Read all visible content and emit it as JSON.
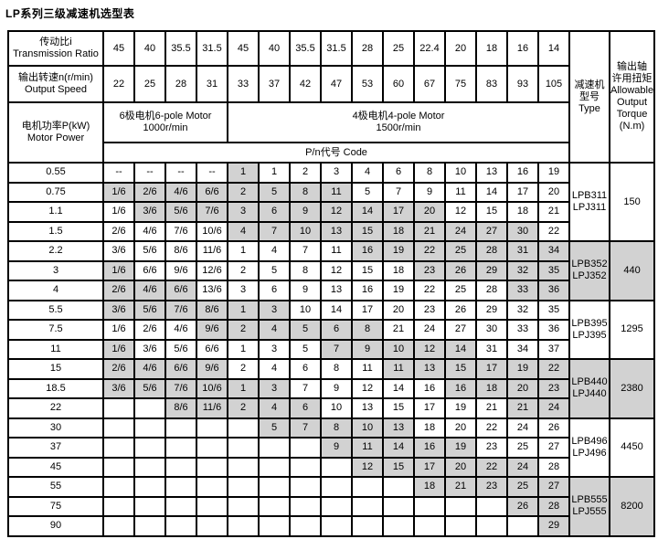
{
  "title": "LP系列三级减速机选型表",
  "colors": {
    "shaded_cell": "#d2d2d2",
    "border": "#000000",
    "background": "#ffffff"
  },
  "header": {
    "ratio_zh": "传动比i",
    "ratio_en": "Transmission Ratio",
    "ratios": [
      "45",
      "40",
      "35.5",
      "31.5",
      "45",
      "40",
      "35.5",
      "31.5",
      "28",
      "25",
      "22.4",
      "20",
      "18",
      "16",
      "14"
    ],
    "speed_zh": "输出转速n(r/min)",
    "speed_en": "Output Speed",
    "speeds": [
      "22",
      "25",
      "28",
      "31",
      "33",
      "37",
      "42",
      "47",
      "53",
      "60",
      "67",
      "75",
      "83",
      "93",
      "105"
    ],
    "power_zh": "电机功率P(kW)",
    "power_en": "Motor Power",
    "motor6_line1": "6极电机6-pole Motor",
    "motor6_line2": "1000r/min",
    "motor4_line1": "4极电机4-pole Motor",
    "motor4_line2": "1500r/min",
    "pn_label": "P/n代号 Code",
    "type_lines": [
      "减速机",
      "型号",
      "Type"
    ],
    "torque_lines": [
      "输出轴",
      "许用扭矩",
      "Allowable",
      "Output",
      "Torque",
      "(N.m)"
    ]
  },
  "groups": [
    {
      "type": [
        "LPB311",
        "LPJ311"
      ],
      "torque": "150",
      "shaded": false,
      "rows": [
        {
          "power": "0.55",
          "cells": [
            "--",
            "--",
            "--",
            "--",
            "1",
            "1",
            "2",
            "3",
            "4",
            "6",
            "8",
            "10",
            "13",
            "16",
            "19"
          ],
          "gray": [
            0,
            0,
            0,
            0,
            1,
            0,
            0,
            0,
            0,
            0,
            0,
            0,
            0,
            0,
            0
          ]
        },
        {
          "power": "0.75",
          "cells": [
            "1/6",
            "2/6",
            "4/6",
            "6/6",
            "2",
            "5",
            "8",
            "11",
            "5",
            "7",
            "9",
            "11",
            "14",
            "17",
            "20"
          ],
          "gray": [
            1,
            1,
            1,
            1,
            1,
            1,
            1,
            1,
            0,
            0,
            0,
            0,
            0,
            0,
            0
          ]
        },
        {
          "power": "1.1",
          "cells": [
            "1/6",
            "3/6",
            "5/6",
            "7/6",
            "3",
            "6",
            "9",
            "12",
            "14",
            "17",
            "20",
            "12",
            "15",
            "18",
            "21"
          ],
          "gray": [
            0,
            1,
            1,
            1,
            1,
            1,
            1,
            1,
            1,
            1,
            1,
            0,
            0,
            0,
            0
          ]
        },
        {
          "power": "1.5",
          "cells": [
            "2/6",
            "4/6",
            "7/6",
            "10/6",
            "4",
            "7",
            "10",
            "13",
            "15",
            "18",
            "21",
            "24",
            "27",
            "30",
            "22"
          ],
          "gray": [
            0,
            0,
            0,
            0,
            1,
            1,
            1,
            1,
            1,
            1,
            1,
            1,
            1,
            1,
            0
          ]
        }
      ]
    },
    {
      "type": [
        "LPB352",
        "LPJ352"
      ],
      "torque": "440",
      "shaded": true,
      "rows": [
        {
          "power": "2.2",
          "cells": [
            "3/6",
            "5/6",
            "8/6",
            "11/6",
            "1",
            "4",
            "7",
            "11",
            "16",
            "19",
            "22",
            "25",
            "28",
            "31",
            "34"
          ],
          "gray": [
            0,
            0,
            0,
            0,
            0,
            0,
            0,
            0,
            1,
            1,
            1,
            1,
            1,
            1,
            1
          ]
        },
        {
          "power": "3",
          "cells": [
            "1/6",
            "6/6",
            "9/6",
            "12/6",
            "2",
            "5",
            "8",
            "12",
            "15",
            "18",
            "23",
            "26",
            "29",
            "32",
            "35"
          ],
          "gray": [
            1,
            0,
            0,
            0,
            0,
            0,
            0,
            0,
            0,
            0,
            1,
            1,
            1,
            1,
            1
          ]
        },
        {
          "power": "4",
          "cells": [
            "2/6",
            "4/6",
            "6/6",
            "13/6",
            "3",
            "6",
            "9",
            "13",
            "16",
            "19",
            "22",
            "25",
            "28",
            "33",
            "36"
          ],
          "gray": [
            1,
            1,
            1,
            0,
            0,
            0,
            0,
            0,
            0,
            0,
            0,
            0,
            0,
            1,
            1
          ]
        }
      ]
    },
    {
      "type": [
        "LPB395",
        "LPJ395"
      ],
      "torque": "1295",
      "shaded": false,
      "rows": [
        {
          "power": "5.5",
          "cells": [
            "3/6",
            "5/6",
            "7/6",
            "8/6",
            "1",
            "3",
            "10",
            "14",
            "17",
            "20",
            "23",
            "26",
            "29",
            "32",
            "35"
          ],
          "gray": [
            1,
            1,
            1,
            1,
            1,
            1,
            0,
            0,
            0,
            0,
            0,
            0,
            0,
            0,
            0
          ]
        },
        {
          "power": "7.5",
          "cells": [
            "1/6",
            "2/6",
            "4/6",
            "9/6",
            "2",
            "4",
            "5",
            "6",
            "8",
            "21",
            "24",
            "27",
            "30",
            "33",
            "36"
          ],
          "gray": [
            0,
            0,
            0,
            1,
            1,
            1,
            1,
            1,
            1,
            0,
            0,
            0,
            0,
            0,
            0
          ]
        },
        {
          "power": "11",
          "cells": [
            "1/6",
            "3/6",
            "5/6",
            "6/6",
            "1",
            "3",
            "5",
            "7",
            "9",
            "10",
            "12",
            "14",
            "31",
            "34",
            "37"
          ],
          "gray": [
            1,
            0,
            0,
            0,
            0,
            0,
            0,
            1,
            1,
            1,
            1,
            1,
            0,
            0,
            0
          ]
        }
      ]
    },
    {
      "type": [
        "LPB440",
        "LPJ440"
      ],
      "torque": "2380",
      "shaded": true,
      "rows": [
        {
          "power": "15",
          "cells": [
            "2/6",
            "4/6",
            "6/6",
            "9/6",
            "2",
            "4",
            "6",
            "8",
            "11",
            "11",
            "13",
            "15",
            "17",
            "19",
            "22"
          ],
          "gray": [
            1,
            1,
            1,
            1,
            0,
            0,
            0,
            0,
            0,
            1,
            1,
            1,
            1,
            1,
            1
          ]
        },
        {
          "power": "18.5",
          "cells": [
            "3/6",
            "5/6",
            "7/6",
            "10/6",
            "1",
            "3",
            "7",
            "9",
            "12",
            "14",
            "16",
            "16",
            "18",
            "20",
            "23"
          ],
          "gray": [
            1,
            1,
            1,
            1,
            1,
            1,
            0,
            0,
            0,
            0,
            0,
            1,
            1,
            1,
            1
          ]
        },
        {
          "power": "22",
          "cells": [
            "",
            "",
            "8/6",
            "11/6",
            "2",
            "4",
            "6",
            "10",
            "13",
            "15",
            "17",
            "19",
            "21",
            "21",
            "24"
          ],
          "gray": [
            0,
            0,
            1,
            1,
            1,
            1,
            1,
            0,
            0,
            0,
            0,
            0,
            0,
            1,
            1
          ]
        }
      ]
    },
    {
      "type": [
        "LPB496",
        "LPJ496"
      ],
      "torque": "4450",
      "shaded": false,
      "rows": [
        {
          "power": "30",
          "cells": [
            "",
            "",
            "",
            "",
            "",
            "5",
            "7",
            "8",
            "10",
            "13",
            "18",
            "20",
            "22",
            "24",
            "26"
          ],
          "gray": [
            0,
            0,
            0,
            0,
            0,
            1,
            1,
            1,
            1,
            1,
            0,
            0,
            0,
            0,
            0
          ]
        },
        {
          "power": "37",
          "cells": [
            "",
            "",
            "",
            "",
            "",
            "",
            "",
            "9",
            "11",
            "14",
            "16",
            "19",
            "23",
            "25",
            "27"
          ],
          "gray": [
            0,
            0,
            0,
            0,
            0,
            0,
            0,
            1,
            1,
            1,
            1,
            1,
            0,
            0,
            0
          ]
        },
        {
          "power": "45",
          "cells": [
            "",
            "",
            "",
            "",
            "",
            "",
            "",
            "",
            "12",
            "15",
            "17",
            "20",
            "22",
            "24",
            "28"
          ],
          "gray": [
            0,
            0,
            0,
            0,
            0,
            0,
            0,
            0,
            1,
            1,
            1,
            1,
            1,
            1,
            0
          ]
        }
      ]
    },
    {
      "type": [
        "LPB555",
        "LPJ555"
      ],
      "torque": "8200",
      "shaded": true,
      "rows": [
        {
          "power": "55",
          "cells": [
            "",
            "",
            "",
            "",
            "",
            "",
            "",
            "",
            "",
            "",
            "18",
            "21",
            "23",
            "25",
            "27"
          ],
          "gray": [
            0,
            0,
            0,
            0,
            0,
            0,
            0,
            0,
            0,
            0,
            1,
            1,
            1,
            1,
            1
          ]
        },
        {
          "power": "75",
          "cells": [
            "",
            "",
            "",
            "",
            "",
            "",
            "",
            "",
            "",
            "",
            "",
            "",
            "",
            "26",
            "28"
          ],
          "gray": [
            0,
            0,
            0,
            0,
            0,
            0,
            0,
            0,
            0,
            0,
            0,
            0,
            0,
            1,
            1
          ]
        },
        {
          "power": "90",
          "cells": [
            "",
            "",
            "",
            "",
            "",
            "",
            "",
            "",
            "",
            "",
            "",
            "",
            "",
            "",
            "29"
          ],
          "gray": [
            0,
            0,
            0,
            0,
            0,
            0,
            0,
            0,
            0,
            0,
            0,
            0,
            0,
            0,
            1
          ]
        }
      ]
    }
  ]
}
